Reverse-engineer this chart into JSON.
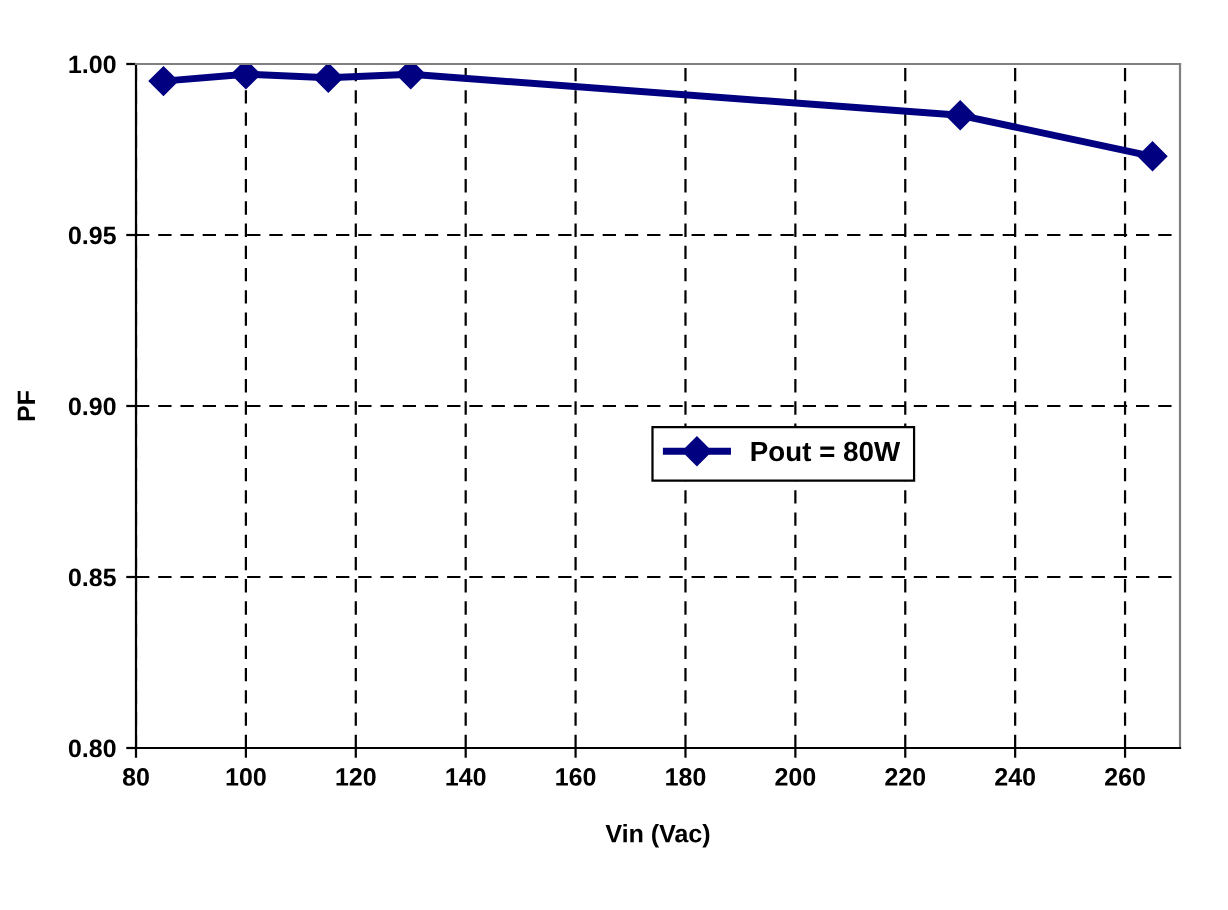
{
  "chart_data": {
    "type": "line",
    "xlabel": "Vin (Vac)",
    "ylabel": "PF",
    "x": [
      85,
      100,
      115,
      130,
      230,
      265
    ],
    "series": [
      {
        "name": "Pout = 80W",
        "color": "#000080",
        "values": [
          0.995,
          0.997,
          0.996,
          0.997,
          0.985,
          0.973
        ]
      }
    ],
    "xlim": [
      80,
      270
    ],
    "xticks": [
      80,
      100,
      120,
      140,
      160,
      180,
      200,
      220,
      240,
      260
    ],
    "ylim": [
      0.8,
      1.0
    ],
    "yticks": [
      {
        "value": 0.8,
        "label": "0.80"
      },
      {
        "value": 0.85,
        "label": "0.85"
      },
      {
        "value": 0.9,
        "label": "0.90"
      },
      {
        "value": 0.95,
        "label": "0.95"
      },
      {
        "value": 1.0,
        "label": "1.00"
      }
    ],
    "grid": true,
    "legend": "center",
    "marker": "diamond",
    "line_style": "solid"
  }
}
